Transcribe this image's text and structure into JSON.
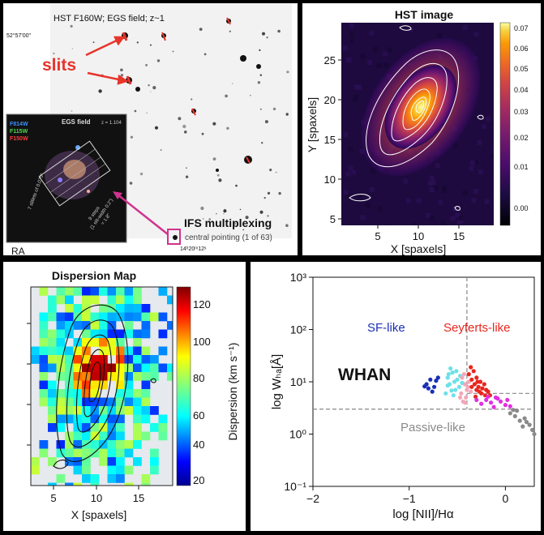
{
  "panel1": {
    "hst_caption": "HST F160W; EGS field; z~1",
    "dec_label": "52°57'00\"",
    "ra_tick_label": "14ʰ20ᵐ12ˢ",
    "ra_axis": "RA",
    "slits_label": "slits",
    "inset_title": "EGS field",
    "inset_redshift": "z = 1.104",
    "inset_filter1": "F814W",
    "inset_filter2": "F115W",
    "inset_filter3": "F150W",
    "inset_side_label": "7 slitlets of 0.075\"",
    "inset_steps_label": "9 steps",
    "inset_steps_detail": "(1 slit-width 0.2\")",
    "inset_total": "= 1.8\"",
    "ifs_title": "IFS multiplexing",
    "ifs_sub": "central pointing (1 of 63)",
    "colors": {
      "slit": "#e8342a",
      "magenta": "#d0338f",
      "f814w": "#3a8fff",
      "f115w": "#4fd84f",
      "f150w": "#ff3a3a"
    }
  },
  "panel2": {
    "title": "HST image",
    "xlabel": "X [spaxels]",
    "ylabel": "Y [spaxels]",
    "xticks": [
      "5",
      "10",
      "15"
    ],
    "yticks": [
      "5",
      "10",
      "15",
      "20",
      "25"
    ],
    "cbar_ticks": [
      "0.07",
      "0.06",
      "0.05",
      "0.04",
      "0.03",
      "0.02",
      "0.01",
      "0.00"
    ],
    "colormap": "inferno"
  },
  "panel3": {
    "title": "Dispersion Map",
    "xlabel": "X [spaxels]",
    "cbar_label": "Dispersion (km s⁻¹)",
    "xticks": [
      "5",
      "10",
      "15"
    ],
    "cbar_ticks": [
      "120",
      "100",
      "80",
      "60",
      "40",
      "20"
    ],
    "colormap": "jet"
  },
  "chart_data": {
    "type": "scatter",
    "title": "",
    "xlabel": "log [NII]/Hα",
    "ylabel": "log Wₕₐ[Å]",
    "xlim": [
      -2,
      0.3
    ],
    "ylim": [
      0.1,
      1000
    ],
    "yscale": "log",
    "xticks": [
      "−2",
      "−1",
      "0"
    ],
    "yticks": [
      "10³",
      "10²",
      "10¹",
      "10⁰",
      "10⁻¹"
    ],
    "grid": false,
    "annotations": {
      "sf": "SF-like",
      "seyfert": "Seyferts-like",
      "passive": "Passive-like",
      "whan": "WHAN"
    },
    "dividers": {
      "x": -0.4,
      "y": 3,
      "liner_y": 6
    },
    "series": [
      {
        "color": "#1a2fb5",
        "points": [
          [
            -0.82,
            9
          ],
          [
            -0.78,
            11
          ],
          [
            -0.74,
            8
          ],
          [
            -0.8,
            7.5
          ],
          [
            -0.72,
            10.5
          ],
          [
            -0.76,
            6.5
          ],
          [
            -0.7,
            12
          ],
          [
            -0.84,
            8.2
          ]
        ]
      },
      {
        "color": "#6ee0e8",
        "points": [
          [
            -0.6,
            12
          ],
          [
            -0.58,
            9
          ],
          [
            -0.55,
            15
          ],
          [
            -0.52,
            7
          ],
          [
            -0.62,
            6
          ],
          [
            -0.5,
            11
          ],
          [
            -0.57,
            18
          ],
          [
            -0.48,
            8
          ],
          [
            -0.54,
            5.5
          ],
          [
            -0.6,
            8.5
          ],
          [
            -0.47,
            13
          ],
          [
            -0.53,
            10
          ],
          [
            -0.56,
            6.8
          ],
          [
            -0.51,
            16
          ],
          [
            -0.59,
            14
          ],
          [
            -0.45,
            9.5
          ]
        ]
      },
      {
        "color": "#f2a8b8",
        "points": [
          [
            -0.45,
            12
          ],
          [
            -0.42,
            9
          ],
          [
            -0.4,
            7
          ],
          [
            -0.38,
            10
          ],
          [
            -0.46,
            6
          ],
          [
            -0.43,
            14
          ],
          [
            -0.41,
            5
          ],
          [
            -0.39,
            8
          ],
          [
            -0.44,
            4.2
          ],
          [
            -0.36,
            6.5
          ],
          [
            -0.47,
            5
          ],
          [
            -0.42,
            4
          ]
        ]
      },
      {
        "color": "#e8261e",
        "points": [
          [
            -0.38,
            14
          ],
          [
            -0.35,
            11
          ],
          [
            -0.32,
            9
          ],
          [
            -0.3,
            12
          ],
          [
            -0.28,
            8
          ],
          [
            -0.26,
            10
          ],
          [
            -0.24,
            7.5
          ],
          [
            -0.22,
            9
          ],
          [
            -0.2,
            7
          ],
          [
            -0.33,
            16
          ],
          [
            -0.3,
            7
          ],
          [
            -0.27,
            6.5
          ],
          [
            -0.35,
            8
          ],
          [
            -0.25,
            6
          ],
          [
            -0.18,
            6.5
          ],
          [
            -0.16,
            5.5
          ],
          [
            -0.36,
            19
          ],
          [
            -0.29,
            10
          ],
          [
            -0.21,
            5.5
          ],
          [
            -0.31,
            5.2
          ]
        ]
      },
      {
        "color": "#e030e0",
        "points": [
          [
            -0.2,
            4.5
          ],
          [
            -0.15,
            4
          ],
          [
            -0.1,
            5
          ],
          [
            -0.05,
            4.2
          ],
          [
            0.0,
            3.6
          ],
          [
            -0.12,
            3.3
          ],
          [
            -0.25,
            3.8
          ],
          [
            -0.3,
            4.5
          ],
          [
            0.05,
            3.4
          ],
          [
            -0.08,
            4.8
          ],
          [
            -0.18,
            5.2
          ],
          [
            0.02,
            4.5
          ]
        ]
      },
      {
        "color": "#8a8a8a",
        "points": [
          [
            0.05,
            2.5
          ],
          [
            0.1,
            2.2
          ],
          [
            0.15,
            1.8
          ],
          [
            0.2,
            2.0
          ],
          [
            0.25,
            1.5
          ],
          [
            0.28,
            1.2
          ],
          [
            0.12,
            2.8
          ],
          [
            0.18,
            1.4
          ],
          [
            0.3,
            1.0
          ],
          [
            0.22,
            1.7
          ],
          [
            0.08,
            2.9
          ]
        ]
      }
    ]
  }
}
